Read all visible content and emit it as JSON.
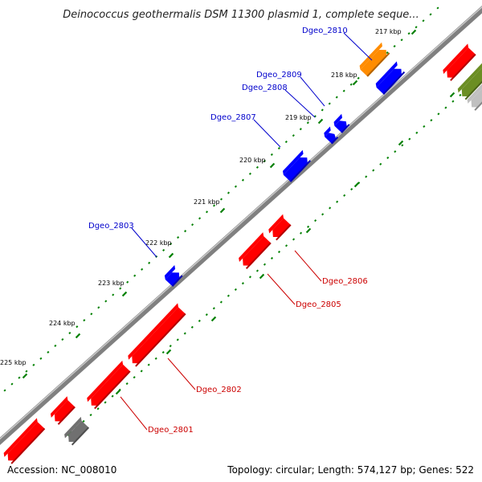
{
  "title": "Deinococcus geothermalis DSM 11300 plasmid 1, complete seque...",
  "accession_text": "Accession: NC_008010",
  "summary_text": "Topology: circular; Length: 574,127 bp; Genes: 522",
  "colors": {
    "backbone": "#808080",
    "tick_minor": "#008000",
    "forward_gene": "#0000ff",
    "reverse_gene": "#ff0000",
    "orange_gene": "#ff8c00",
    "gray_gene": "#707070",
    "olive_gene": "#6b8e23",
    "forward_label": "#0000cc",
    "reverse_label": "#cc0000"
  },
  "ticks": [
    {
      "label": "217 kbp"
    },
    {
      "label": "218 kbp"
    },
    {
      "label": "219 kbp"
    },
    {
      "label": "220 kbp"
    },
    {
      "label": "221 kbp"
    },
    {
      "label": "222 kbp"
    },
    {
      "label": "223 kbp"
    },
    {
      "label": "224 kbp"
    },
    {
      "label": "225 kbp"
    }
  ],
  "forward_labels": [
    {
      "name": "Dgeo_2810"
    },
    {
      "name": "Dgeo_2809"
    },
    {
      "name": "Dgeo_2808"
    },
    {
      "name": "Dgeo_2807"
    },
    {
      "name": "Dgeo_2803"
    }
  ],
  "reverse_labels": [
    {
      "name": "Dgeo_2806"
    },
    {
      "name": "Dgeo_2805"
    },
    {
      "name": "Dgeo_2802"
    },
    {
      "name": "Dgeo_2801"
    }
  ]
}
